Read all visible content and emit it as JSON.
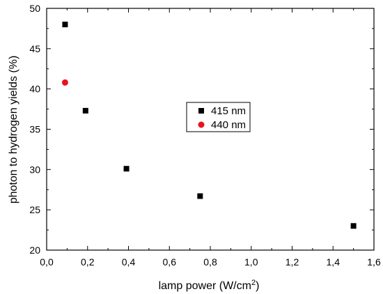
{
  "chart_data": {
    "type": "scatter",
    "xlabel": "lamp power (W/cm",
    "xlabel_sup": "2",
    "xlabel_end": ")",
    "ylabel": "photon to hydrogen yields (%)",
    "xlim": [
      0.0,
      1.6
    ],
    "ylim": [
      20,
      50
    ],
    "x_ticks": [
      0.0,
      0.2,
      0.4,
      0.6,
      0.8,
      1.0,
      1.2,
      1.4,
      1.6
    ],
    "x_tick_labels": [
      "0,0",
      "0,2",
      "0,4",
      "0,6",
      "0,8",
      "1,0",
      "1,2",
      "1,4",
      "1,6"
    ],
    "y_ticks": [
      20,
      25,
      30,
      35,
      40,
      45,
      50
    ],
    "y_tick_labels": [
      "20",
      "25",
      "30",
      "35",
      "40",
      "45",
      "50"
    ],
    "grid": false,
    "legend_position": "center-right",
    "series": [
      {
        "name": "415 nm",
        "marker": "square",
        "color": "#000000",
        "points": [
          {
            "x": 0.09,
            "y": 48.0
          },
          {
            "x": 0.19,
            "y": 37.3
          },
          {
            "x": 0.39,
            "y": 30.1
          },
          {
            "x": 0.75,
            "y": 26.7
          },
          {
            "x": 1.5,
            "y": 23.0
          }
        ]
      },
      {
        "name": "440 nm",
        "marker": "circle",
        "color": "#e8141c",
        "points": [
          {
            "x": 0.09,
            "y": 40.8
          }
        ]
      }
    ]
  }
}
